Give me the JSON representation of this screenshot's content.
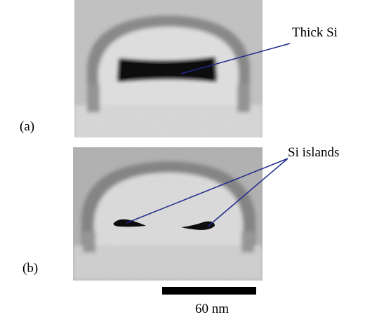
{
  "panels": [
    {
      "label": "(a)",
      "annotation": "Thick Si"
    },
    {
      "label": "(b)",
      "annotation": "Si islands"
    }
  ],
  "scale_bar": {
    "label": "60 nm"
  }
}
